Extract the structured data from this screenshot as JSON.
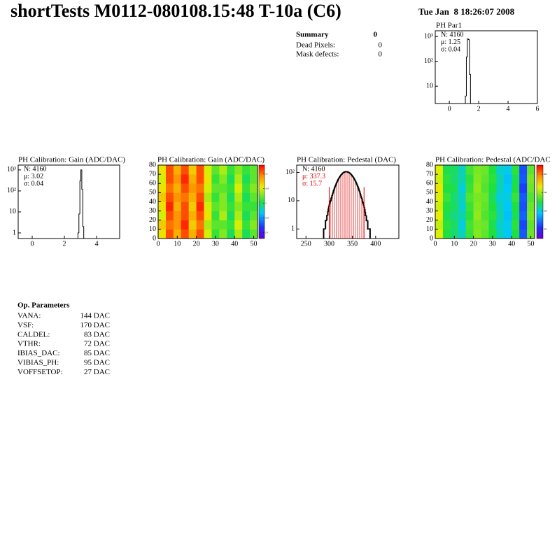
{
  "header": {
    "title": "shortTests M0112-080108.15:48 T-10a (C6)",
    "date": "Tue Jan  8 18:26:07 2008"
  },
  "summary": {
    "title": "Summary",
    "value": "0",
    "rows": [
      [
        "Dead Pixels:",
        "0"
      ],
      [
        "Mask defects:",
        "0"
      ]
    ]
  },
  "op_parameters": {
    "title": "Op. Parameters",
    "rows": [
      [
        "VANA:",
        "144 DAC"
      ],
      [
        "VSF:",
        "170 DAC"
      ],
      [
        "CALDEL:",
        "83 DAC"
      ],
      [
        "VTHR:",
        "72 DAC"
      ],
      [
        "IBIAS_DAC:",
        "85 DAC"
      ],
      [
        "VIBIAS_PH:",
        "95 DAC"
      ],
      [
        "VOFFSETOP:",
        "27 DAC"
      ]
    ]
  },
  "chart_data": [
    {
      "type": "histogram",
      "title": "PH Par1",
      "stats": [
        "N: 4160",
        "μ: 1.25",
        "σ: 0.04"
      ],
      "stats_colors": [
        "#000000",
        "#000000",
        "#000000"
      ],
      "bins": [
        1.09,
        1.16,
        1.23,
        1.3,
        1.37,
        1.44
      ],
      "values": [
        4,
        150,
        800,
        750,
        30
      ],
      "xlim": [
        -0.96,
        6
      ],
      "xticks": [
        0,
        2,
        4,
        6
      ],
      "ylog": true,
      "ylim": [
        2,
        1700
      ],
      "yticks": [
        10,
        {
          "value": 100,
          "label": "10²"
        },
        {
          "value": 1000,
          "label": "10³"
        }
      ],
      "color": "#000000",
      "line_width": 1
    },
    {
      "type": "histogram",
      "title": "PH Calibration: Gain (ADC/DAC)",
      "stats": [
        "N: 4160",
        "μ: 3.02",
        "σ: 0.04"
      ],
      "stats_colors": [
        "#000000",
        "#000000",
        "#000000"
      ],
      "bins": [
        2.84,
        2.9,
        2.96,
        3.02,
        3.08,
        3.14,
        3.2
      ],
      "values": [
        1,
        8,
        300,
        1000,
        120,
        2
      ],
      "xlim": [
        -0.87,
        5.43
      ],
      "xticks": [
        0,
        2,
        4
      ],
      "ylog": true,
      "ylim": [
        0.54,
        1700
      ],
      "yticks": [
        1,
        10,
        {
          "value": 100,
          "label": "10²"
        },
        {
          "value": 1000,
          "label": "10³"
        }
      ],
      "color": "#000000",
      "line_width": 1
    },
    {
      "type": "heatmap",
      "title": "PH Calibration: Gain (ADC/DAC)",
      "xbins": [
        0,
        4,
        8,
        12,
        16,
        20,
        24,
        28,
        32,
        36,
        40,
        44,
        48,
        52
      ],
      "ybins": [
        0,
        10,
        20,
        30,
        40,
        50,
        60,
        70,
        80
      ],
      "z": [
        [
          3.06,
          3.11,
          3.08,
          3.11,
          3.08,
          3.11,
          3.05,
          3.01,
          3.03,
          3.0,
          3.04,
          3.0,
          3.02
        ],
        [
          3.07,
          3.1,
          3.09,
          3.12,
          3.07,
          3.1,
          3.04,
          3.02,
          3.02,
          3.01,
          3.05,
          3.01,
          3.03
        ],
        [
          3.05,
          3.11,
          3.09,
          3.11,
          3.08,
          3.11,
          3.06,
          3.01,
          3.04,
          3.0,
          3.04,
          3.0,
          3.02
        ],
        [
          3.06,
          3.12,
          3.08,
          3.11,
          3.07,
          3.12,
          3.05,
          3.02,
          3.03,
          3.01,
          3.03,
          3.01,
          3.01
        ],
        [
          3.07,
          3.11,
          3.09,
          3.1,
          3.08,
          3.11,
          3.04,
          3.01,
          3.03,
          3.0,
          3.04,
          3.0,
          3.02
        ],
        [
          3.06,
          3.1,
          3.08,
          3.11,
          3.09,
          3.1,
          3.05,
          3.02,
          3.02,
          3.01,
          3.05,
          3.01,
          3.03
        ],
        [
          3.05,
          3.11,
          3.09,
          3.12,
          3.08,
          3.11,
          3.06,
          3.01,
          3.03,
          3.0,
          3.04,
          3.0,
          3.02
        ],
        [
          3.06,
          3.11,
          3.08,
          3.11,
          3.07,
          3.11,
          3.05,
          3.02,
          3.04,
          3.01,
          3.03,
          3.01,
          3.02
        ]
      ],
      "zlim": [
        2.88,
        3.13
      ],
      "zticks": [
        2.9,
        2.95,
        3,
        3.05,
        3.1
      ],
      "xlim": [
        0,
        52
      ],
      "xticks": [
        0,
        10,
        20,
        30,
        40,
        50
      ],
      "ylim": [
        0,
        80
      ],
      "yticks": [
        0,
        10,
        20,
        30,
        40,
        50,
        60,
        70,
        80
      ]
    },
    {
      "type": "histogram",
      "title": "PH Calibration: Pedestal (DAC)",
      "stats": [
        "N: 4160",
        "μ: 337.3",
        "σ: 15.7"
      ],
      "stats_colors": [
        "#000000",
        "#e00000",
        "#e00000"
      ],
      "bins": [
        288,
        289,
        290,
        291,
        292,
        293,
        294,
        295,
        296,
        297,
        298,
        299,
        300,
        301,
        302,
        303,
        304,
        305,
        306,
        307,
        308,
        309,
        310,
        311,
        312,
        313,
        314,
        315,
        316,
        317,
        318,
        319,
        320,
        321,
        322,
        323,
        324,
        325,
        326,
        327,
        328,
        329,
        330,
        331,
        332,
        333,
        334,
        335,
        336,
        337,
        338,
        339,
        340,
        341,
        342,
        343,
        344,
        345,
        346,
        347,
        348,
        349,
        350,
        351,
        352,
        353,
        354,
        355,
        356,
        357,
        358,
        359,
        360,
        361,
        362,
        363,
        364,
        365,
        366,
        367,
        368,
        369,
        370,
        371,
        372,
        373,
        374,
        375,
        376,
        377,
        378,
        379,
        380,
        381,
        382,
        383,
        384,
        385,
        386,
        387,
        388
      ],
      "values": [
        1,
        1,
        1,
        1,
        2,
        2,
        2,
        3,
        3,
        4,
        5,
        6,
        7,
        8,
        9,
        10,
        12,
        13,
        15,
        17,
        19,
        22,
        24,
        27,
        30,
        33,
        36,
        40,
        43,
        47,
        51,
        55,
        59,
        63,
        67,
        71,
        75,
        79,
        82,
        86,
        90,
        93,
        96,
        99,
        101,
        103,
        104,
        105,
        106,
        106,
        106,
        105,
        104,
        103,
        101,
        99,
        96,
        93,
        90,
        86,
        82,
        79,
        75,
        71,
        67,
        63,
        59,
        55,
        51,
        47,
        43,
        40,
        36,
        33,
        30,
        27,
        24,
        22,
        19,
        17,
        15,
        13,
        12,
        10,
        9,
        8,
        7,
        6,
        5,
        4,
        3,
        3,
        2,
        2,
        2,
        1,
        1,
        1,
        1,
        1
      ],
      "xlim": [
        230,
        450
      ],
      "xticks": [
        250,
        300,
        350,
        400
      ],
      "ylog": true,
      "ylim": [
        0.46,
        182
      ],
      "yticks": [
        1,
        10,
        {
          "value": 100,
          "label": "10²"
        }
      ],
      "color": "#000000",
      "line_width": 2,
      "markers": [
        300,
        375
      ],
      "marker_color": "#e00000",
      "hatch_between_markers": true
    },
    {
      "type": "heatmap",
      "title": "PH Calibration: Pedestal (ADC/DAC",
      "xbins": [
        0,
        4,
        8,
        12,
        16,
        20,
        24,
        28,
        32,
        36,
        40,
        44,
        48,
        52
      ],
      "ybins": [
        0,
        10,
        20,
        30,
        40,
        50,
        60,
        70,
        80
      ],
      "z": [
        [
          345,
          330,
          327,
          322,
          332,
          338,
          335,
          330,
          322,
          318,
          330,
          306,
          336
        ],
        [
          343,
          331,
          328,
          320,
          333,
          337,
          336,
          329,
          321,
          319,
          331,
          304,
          335
        ],
        [
          346,
          329,
          326,
          323,
          331,
          339,
          334,
          331,
          323,
          317,
          329,
          307,
          337
        ],
        [
          344,
          330,
          328,
          321,
          332,
          338,
          335,
          330,
          322,
          318,
          330,
          305,
          336
        ],
        [
          345,
          332,
          327,
          322,
          334,
          337,
          336,
          328,
          320,
          320,
          332,
          306,
          334
        ],
        [
          347,
          330,
          329,
          320,
          332,
          339,
          334,
          330,
          322,
          318,
          330,
          303,
          336
        ],
        [
          344,
          331,
          327,
          323,
          331,
          338,
          335,
          331,
          323,
          317,
          329,
          306,
          337
        ],
        [
          345,
          329,
          328,
          322,
          333,
          337,
          336,
          330,
          321,
          319,
          331,
          305,
          335
        ]
      ],
      "zlim": [
        290,
        370
      ],
      "zticks": [
        300,
        320,
        340,
        360
      ],
      "xlim": [
        0,
        52
      ],
      "xticks": [
        0,
        10,
        20,
        30,
        40,
        50
      ],
      "ylim": [
        0,
        80
      ],
      "yticks": [
        0,
        10,
        20,
        30,
        40,
        50,
        60,
        70,
        80
      ]
    }
  ]
}
